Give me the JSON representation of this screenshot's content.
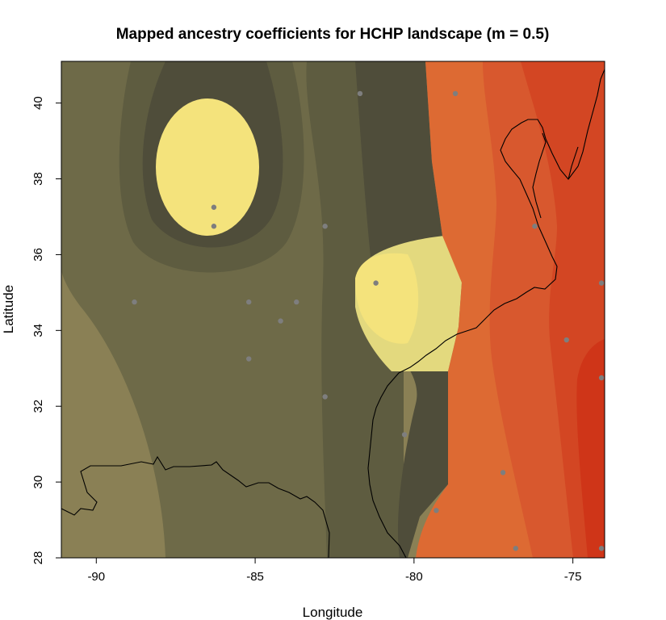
{
  "chart_data": {
    "type": "heatmap",
    "title": "Mapped ancestry coefficients for HCHP landscape (m = 0.5)",
    "xlabel": "Longitude",
    "ylabel": "Latitude",
    "xlim": [
      -91.1,
      -74.0
    ],
    "ylim": [
      28.0,
      41.1
    ],
    "x_ticks": [
      -90,
      -85,
      -80,
      -75
    ],
    "y_ticks": [
      28,
      30,
      32,
      34,
      36,
      38,
      40
    ],
    "grid": false,
    "legend": "none",
    "colors": {
      "olive_light": "#8A8055",
      "olive_mid": "#6E6A48",
      "olive_dark": "#5E5C40",
      "olive_darkest": "#4F4D3A",
      "yellow_pale": "#E3D97E",
      "yellow_bright": "#F4E37C",
      "orange_light": "#DD6A33",
      "orange_mid": "#D8582E",
      "red_mid": "#D34623",
      "red_dark": "#CF3518",
      "sample_point": "#7E7E7E",
      "coastline": "#000000"
    },
    "sample_points": [
      {
        "lon": -81.7,
        "lat": 40.25
      },
      {
        "lon": -78.7,
        "lat": 40.25
      },
      {
        "lon": -86.3,
        "lat": 37.25
      },
      {
        "lon": -86.3,
        "lat": 36.75
      },
      {
        "lon": -82.8,
        "lat": 36.75
      },
      {
        "lon": -76.2,
        "lat": 36.75
      },
      {
        "lon": -81.2,
        "lat": 35.25
      },
      {
        "lon": -74.1,
        "lat": 35.25
      },
      {
        "lon": -88.8,
        "lat": 34.75
      },
      {
        "lon": -85.2,
        "lat": 34.75
      },
      {
        "lon": -83.7,
        "lat": 34.75
      },
      {
        "lon": -84.2,
        "lat": 34.25
      },
      {
        "lon": -75.2,
        "lat": 33.75
      },
      {
        "lon": -85.2,
        "lat": 33.25
      },
      {
        "lon": -74.1,
        "lat": 32.75
      },
      {
        "lon": -82.8,
        "lat": 32.25
      },
      {
        "lon": -80.3,
        "lat": 31.25
      },
      {
        "lon": -77.2,
        "lat": 30.25
      },
      {
        "lon": -79.3,
        "lat": 29.25
      },
      {
        "lon": -76.8,
        "lat": 28.25
      },
      {
        "lon": -74.1,
        "lat": 28.25
      }
    ]
  }
}
